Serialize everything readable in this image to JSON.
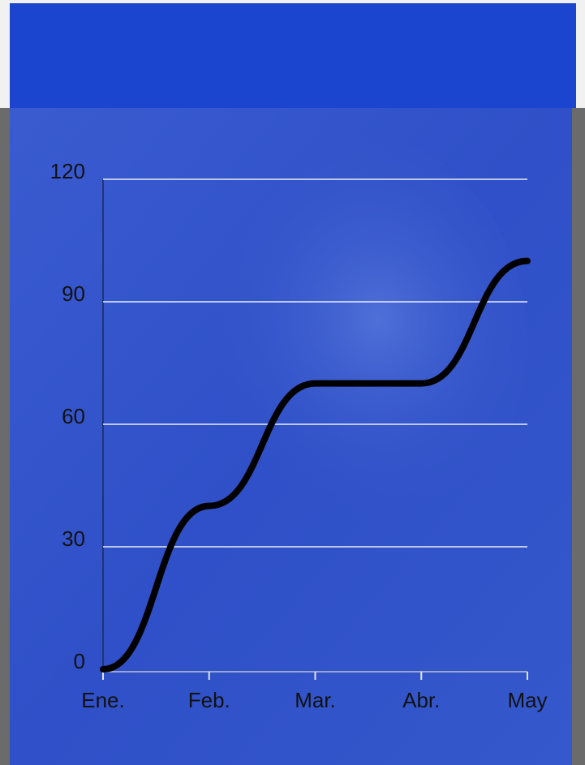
{
  "chart_data": {
    "type": "line",
    "categories": [
      "Ene.",
      "Feb.",
      "Mar.",
      "Abr.",
      "May"
    ],
    "values": [
      0,
      40,
      70,
      70,
      100
    ],
    "color": "#000000",
    "ylim": [
      0,
      120
    ],
    "yticks": [
      0,
      30,
      60,
      90,
      120
    ],
    "grid": true
  }
}
